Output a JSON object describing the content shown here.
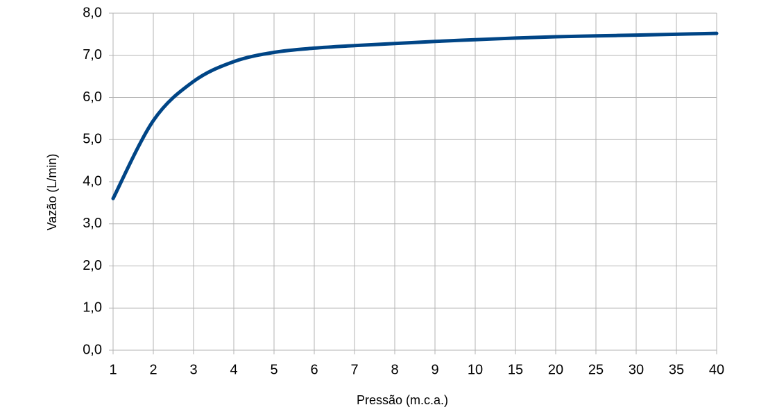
{
  "chart_data": {
    "type": "line",
    "x_label": "Pressão (m.c.a.)",
    "y_label": "Vazão (L/min)",
    "categories": [
      "1",
      "2",
      "3",
      "4",
      "5",
      "6",
      "7",
      "8",
      "9",
      "10",
      "15",
      "20",
      "25",
      "30",
      "35",
      "40"
    ],
    "series": [
      {
        "color": "#004586",
        "values": [
          3.6,
          5.45,
          6.38,
          6.85,
          7.07,
          7.17,
          7.23,
          7.28,
          7.33,
          7.37,
          7.41,
          7.44,
          7.46,
          7.48,
          7.5,
          7.52
        ]
      }
    ],
    "ylim": [
      0,
      8
    ],
    "yticks": [
      {
        "value": 0,
        "label": "0,0"
      },
      {
        "value": 1,
        "label": "1,0"
      },
      {
        "value": 2,
        "label": "2,0"
      },
      {
        "value": 3,
        "label": "3,0"
      },
      {
        "value": 4,
        "label": "4,0"
      },
      {
        "value": 5,
        "label": "5,0"
      },
      {
        "value": 6,
        "label": "6,0"
      },
      {
        "value": 7,
        "label": "7,0"
      },
      {
        "value": 8,
        "label": "8,0"
      }
    ],
    "grid": true
  }
}
